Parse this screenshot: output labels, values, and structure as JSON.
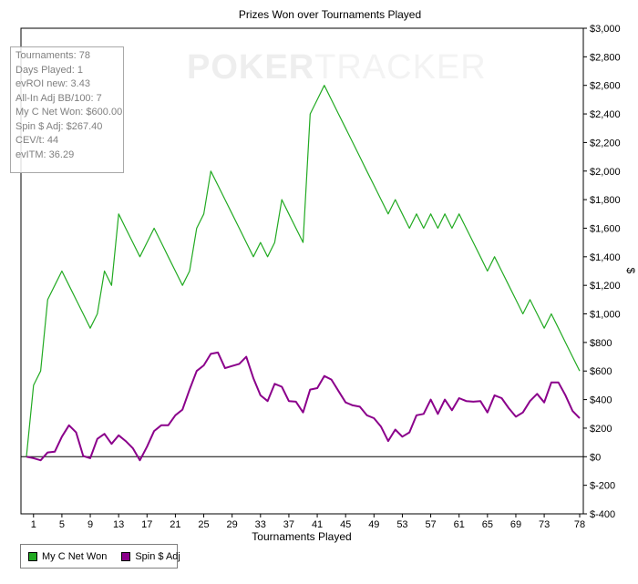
{
  "watermark": {
    "text_a": "POKER",
    "text_b": "TRACKER"
  },
  "stats": [
    "Tournaments: 78",
    "Days Played: 1",
    "evROI new: 3.43",
    "All-In Adj BB/100: 7",
    "My C Net Won: $600.00",
    "Spin $ Adj: $267.40",
    "CEV/t: 44",
    "evITM: 36.29"
  ],
  "legend": [
    {
      "label": "My C Net Won",
      "color": "#22aa22"
    },
    {
      "label": "Spin $ Adj",
      "color": "#8b008b"
    }
  ],
  "chart_data": {
    "type": "line",
    "title": "Prizes Won over Tournaments Played",
    "xlabel": "Tournaments Played",
    "ylabel": "$",
    "xlim": [
      0,
      78
    ],
    "ylim": [
      -400,
      3000
    ],
    "x_ticks": [
      1,
      5,
      9,
      13,
      17,
      21,
      25,
      29,
      33,
      37,
      41,
      45,
      49,
      53,
      57,
      61,
      65,
      69,
      73,
      78
    ],
    "y_ticks": [
      -400,
      -200,
      0,
      200,
      400,
      600,
      800,
      1000,
      1200,
      1400,
      1600,
      1800,
      2000,
      2200,
      2400,
      2600,
      2800,
      3000
    ],
    "y_tick_labels": [
      "$-400",
      "$-200",
      "$0",
      "$200",
      "$400",
      "$600",
      "$800",
      "$1,000",
      "$1,200",
      "$1,400",
      "$1,600",
      "$1,800",
      "$2,000",
      "$2,200",
      "$2,400",
      "$2,600",
      "$2,800",
      "$3,000"
    ],
    "grid": false,
    "legend_position": "bottom-left",
    "series": [
      {
        "name": "My C Net Won",
        "color": "#22aa22",
        "x": [
          0,
          1,
          2,
          3,
          4,
          5,
          6,
          7,
          8,
          9,
          10,
          11,
          12,
          13,
          14,
          15,
          16,
          17,
          18,
          19,
          20,
          21,
          22,
          23,
          24,
          25,
          26,
          27,
          28,
          29,
          30,
          31,
          32,
          33,
          34,
          35,
          36,
          37,
          38,
          39,
          40,
          41,
          42,
          43,
          44,
          45,
          46,
          47,
          48,
          49,
          50,
          51,
          52,
          53,
          54,
          55,
          56,
          57,
          58,
          59,
          60,
          61,
          62,
          63,
          64,
          65,
          66,
          67,
          68,
          69,
          70,
          71,
          72,
          73,
          74,
          75,
          76,
          77,
          78
        ],
        "values": [
          0,
          500,
          600,
          1100,
          1200,
          1300,
          1200,
          1100,
          1000,
          900,
          1000,
          1300,
          1200,
          1700,
          1600,
          1500,
          1400,
          1500,
          1600,
          1500,
          1400,
          1300,
          1200,
          1300,
          1600,
          1700,
          2000,
          1900,
          1800,
          1700,
          1600,
          1500,
          1400,
          1500,
          1400,
          1500,
          1800,
          1700,
          1600,
          1500,
          2400,
          2500,
          2600,
          2500,
          2400,
          2300,
          2200,
          2100,
          2000,
          1900,
          1800,
          1700,
          1800,
          1700,
          1600,
          1700,
          1600,
          1700,
          1600,
          1700,
          1600,
          1700,
          1600,
          1500,
          1400,
          1300,
          1400,
          1300,
          1200,
          1100,
          1000,
          1100,
          1000,
          900,
          1000,
          900,
          800,
          700,
          600
        ]
      },
      {
        "name": "Spin $ Adj",
        "color": "#8b008b",
        "x": [
          0,
          1,
          2,
          3,
          4,
          5,
          6,
          7,
          8,
          9,
          10,
          11,
          12,
          13,
          14,
          15,
          16,
          17,
          18,
          19,
          20,
          21,
          22,
          23,
          24,
          25,
          26,
          27,
          28,
          29,
          30,
          31,
          32,
          33,
          34,
          35,
          36,
          37,
          38,
          39,
          40,
          41,
          42,
          43,
          44,
          45,
          46,
          47,
          48,
          49,
          50,
          51,
          52,
          53,
          54,
          55,
          56,
          57,
          58,
          59,
          60,
          61,
          62,
          63,
          64,
          65,
          66,
          67,
          68,
          69,
          70,
          71,
          72,
          73,
          74,
          75,
          76,
          77,
          78
        ],
        "values": [
          0,
          -10,
          -25,
          30,
          35,
          140,
          220,
          170,
          5,
          -10,
          125,
          160,
          90,
          150,
          110,
          60,
          -25,
          70,
          180,
          220,
          220,
          290,
          330,
          470,
          600,
          640,
          720,
          730,
          620,
          635,
          650,
          700,
          550,
          430,
          390,
          510,
          490,
          390,
          385,
          310,
          470,
          480,
          565,
          540,
          460,
          380,
          360,
          350,
          290,
          270,
          210,
          110,
          190,
          140,
          170,
          290,
          300,
          400,
          300,
          400,
          325,
          410,
          390,
          385,
          390,
          310,
          430,
          410,
          340,
          280,
          310,
          390,
          440,
          380,
          520,
          520,
          430,
          320,
          270
        ]
      }
    ]
  }
}
